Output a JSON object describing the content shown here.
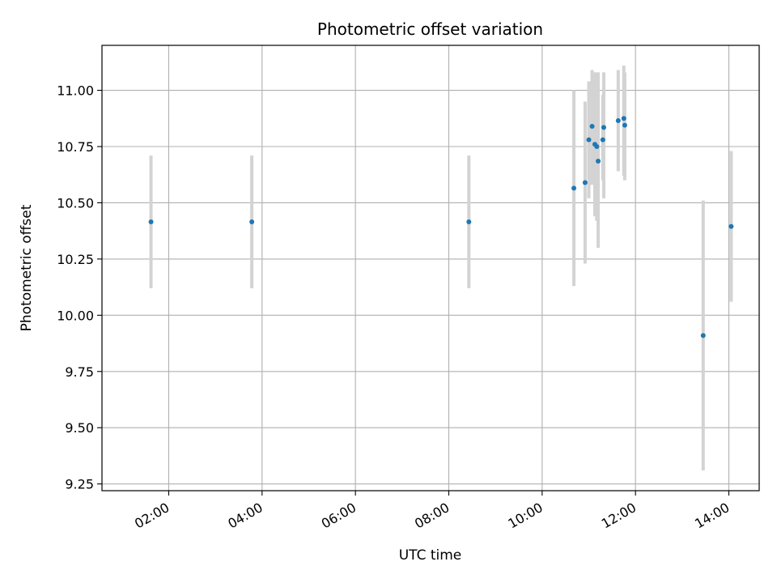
{
  "chart_data": {
    "type": "scatter",
    "title": "Photometric offset variation",
    "xlabel": "UTC time",
    "ylabel": "Photometric offset",
    "x_unit": "hours (UTC)",
    "xlim": [
      0.57,
      14.65
    ],
    "ylim": [
      9.22,
      11.2
    ],
    "x_ticks": [
      {
        "value": 2,
        "label": "02:00"
      },
      {
        "value": 4,
        "label": "04:00"
      },
      {
        "value": 6,
        "label": "06:00"
      },
      {
        "value": 8,
        "label": "08:00"
      },
      {
        "value": 10,
        "label": "10:00"
      },
      {
        "value": 12,
        "label": "12:00"
      },
      {
        "value": 14,
        "label": "14:00"
      }
    ],
    "y_ticks": [
      {
        "value": 9.25,
        "label": "9.25"
      },
      {
        "value": 9.5,
        "label": "9.50"
      },
      {
        "value": 9.75,
        "label": "9.75"
      },
      {
        "value": 10.0,
        "label": "10.00"
      },
      {
        "value": 10.25,
        "label": "10.25"
      },
      {
        "value": 10.5,
        "label": "10.50"
      },
      {
        "value": 10.75,
        "label": "10.75"
      },
      {
        "value": 11.0,
        "label": "11.00"
      }
    ],
    "grid": true,
    "x_tick_rotation": "30 degrees",
    "point_color": "#1f77b4",
    "errorbar_color": "#d3d3d3",
    "points": [
      {
        "x": 1.62,
        "y": 10.415,
        "ylo": 10.12,
        "yhi": 10.71
      },
      {
        "x": 3.78,
        "y": 10.415,
        "ylo": 10.12,
        "yhi": 10.71
      },
      {
        "x": 8.43,
        "y": 10.415,
        "ylo": 10.12,
        "yhi": 10.71
      },
      {
        "x": 10.68,
        "y": 10.565,
        "ylo": 10.13,
        "yhi": 11.0
      },
      {
        "x": 10.92,
        "y": 10.59,
        "ylo": 10.23,
        "yhi": 10.95
      },
      {
        "x": 11.0,
        "y": 10.78,
        "ylo": 10.52,
        "yhi": 11.04
      },
      {
        "x": 11.07,
        "y": 10.84,
        "ylo": 10.58,
        "yhi": 11.09
      },
      {
        "x": 11.13,
        "y": 10.76,
        "ylo": 10.44,
        "yhi": 11.08
      },
      {
        "x": 11.17,
        "y": 10.75,
        "ylo": 10.42,
        "yhi": 11.08
      },
      {
        "x": 11.2,
        "y": 10.685,
        "ylo": 10.3,
        "yhi": 11.08
      },
      {
        "x": 11.3,
        "y": 10.78,
        "ylo": 10.6,
        "yhi": 10.98
      },
      {
        "x": 11.32,
        "y": 10.835,
        "ylo": 10.52,
        "yhi": 11.08
      },
      {
        "x": 11.63,
        "y": 10.865,
        "ylo": 10.64,
        "yhi": 11.09
      },
      {
        "x": 11.75,
        "y": 10.875,
        "ylo": 10.62,
        "yhi": 11.11
      },
      {
        "x": 11.77,
        "y": 10.845,
        "ylo": 10.6,
        "yhi": 11.08
      },
      {
        "x": 13.45,
        "y": 9.91,
        "ylo": 9.31,
        "yhi": 10.51
      },
      {
        "x": 14.05,
        "y": 10.395,
        "ylo": 10.06,
        "yhi": 10.73
      }
    ]
  }
}
